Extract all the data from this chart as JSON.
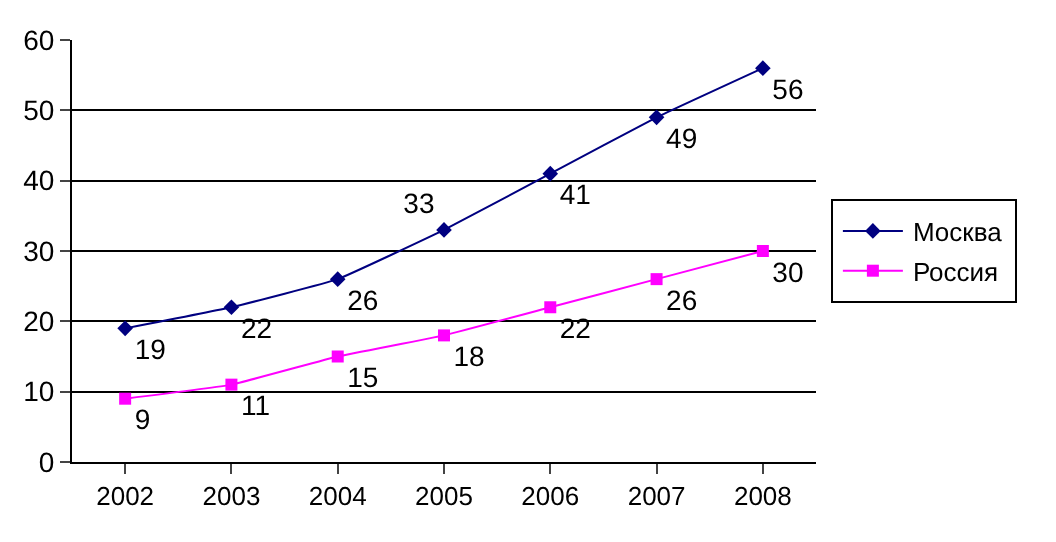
{
  "chart_data": {
    "type": "line",
    "categories": [
      "2002",
      "2003",
      "2004",
      "2005",
      "2006",
      "2007",
      "2008"
    ],
    "series": [
      {
        "name": "Москва",
        "color": "#000080",
        "marker": "diamond",
        "values": [
          19,
          22,
          26,
          33,
          41,
          49,
          56
        ]
      },
      {
        "name": "Россия",
        "color": "#ff00ff",
        "marker": "square",
        "values": [
          9,
          11,
          15,
          18,
          22,
          26,
          30
        ]
      }
    ],
    "ylim": [
      0,
      60
    ],
    "yticks": [
      0,
      10,
      20,
      30,
      40,
      50,
      60
    ],
    "grid": "y",
    "legend": "right",
    "data_labels": true
  }
}
